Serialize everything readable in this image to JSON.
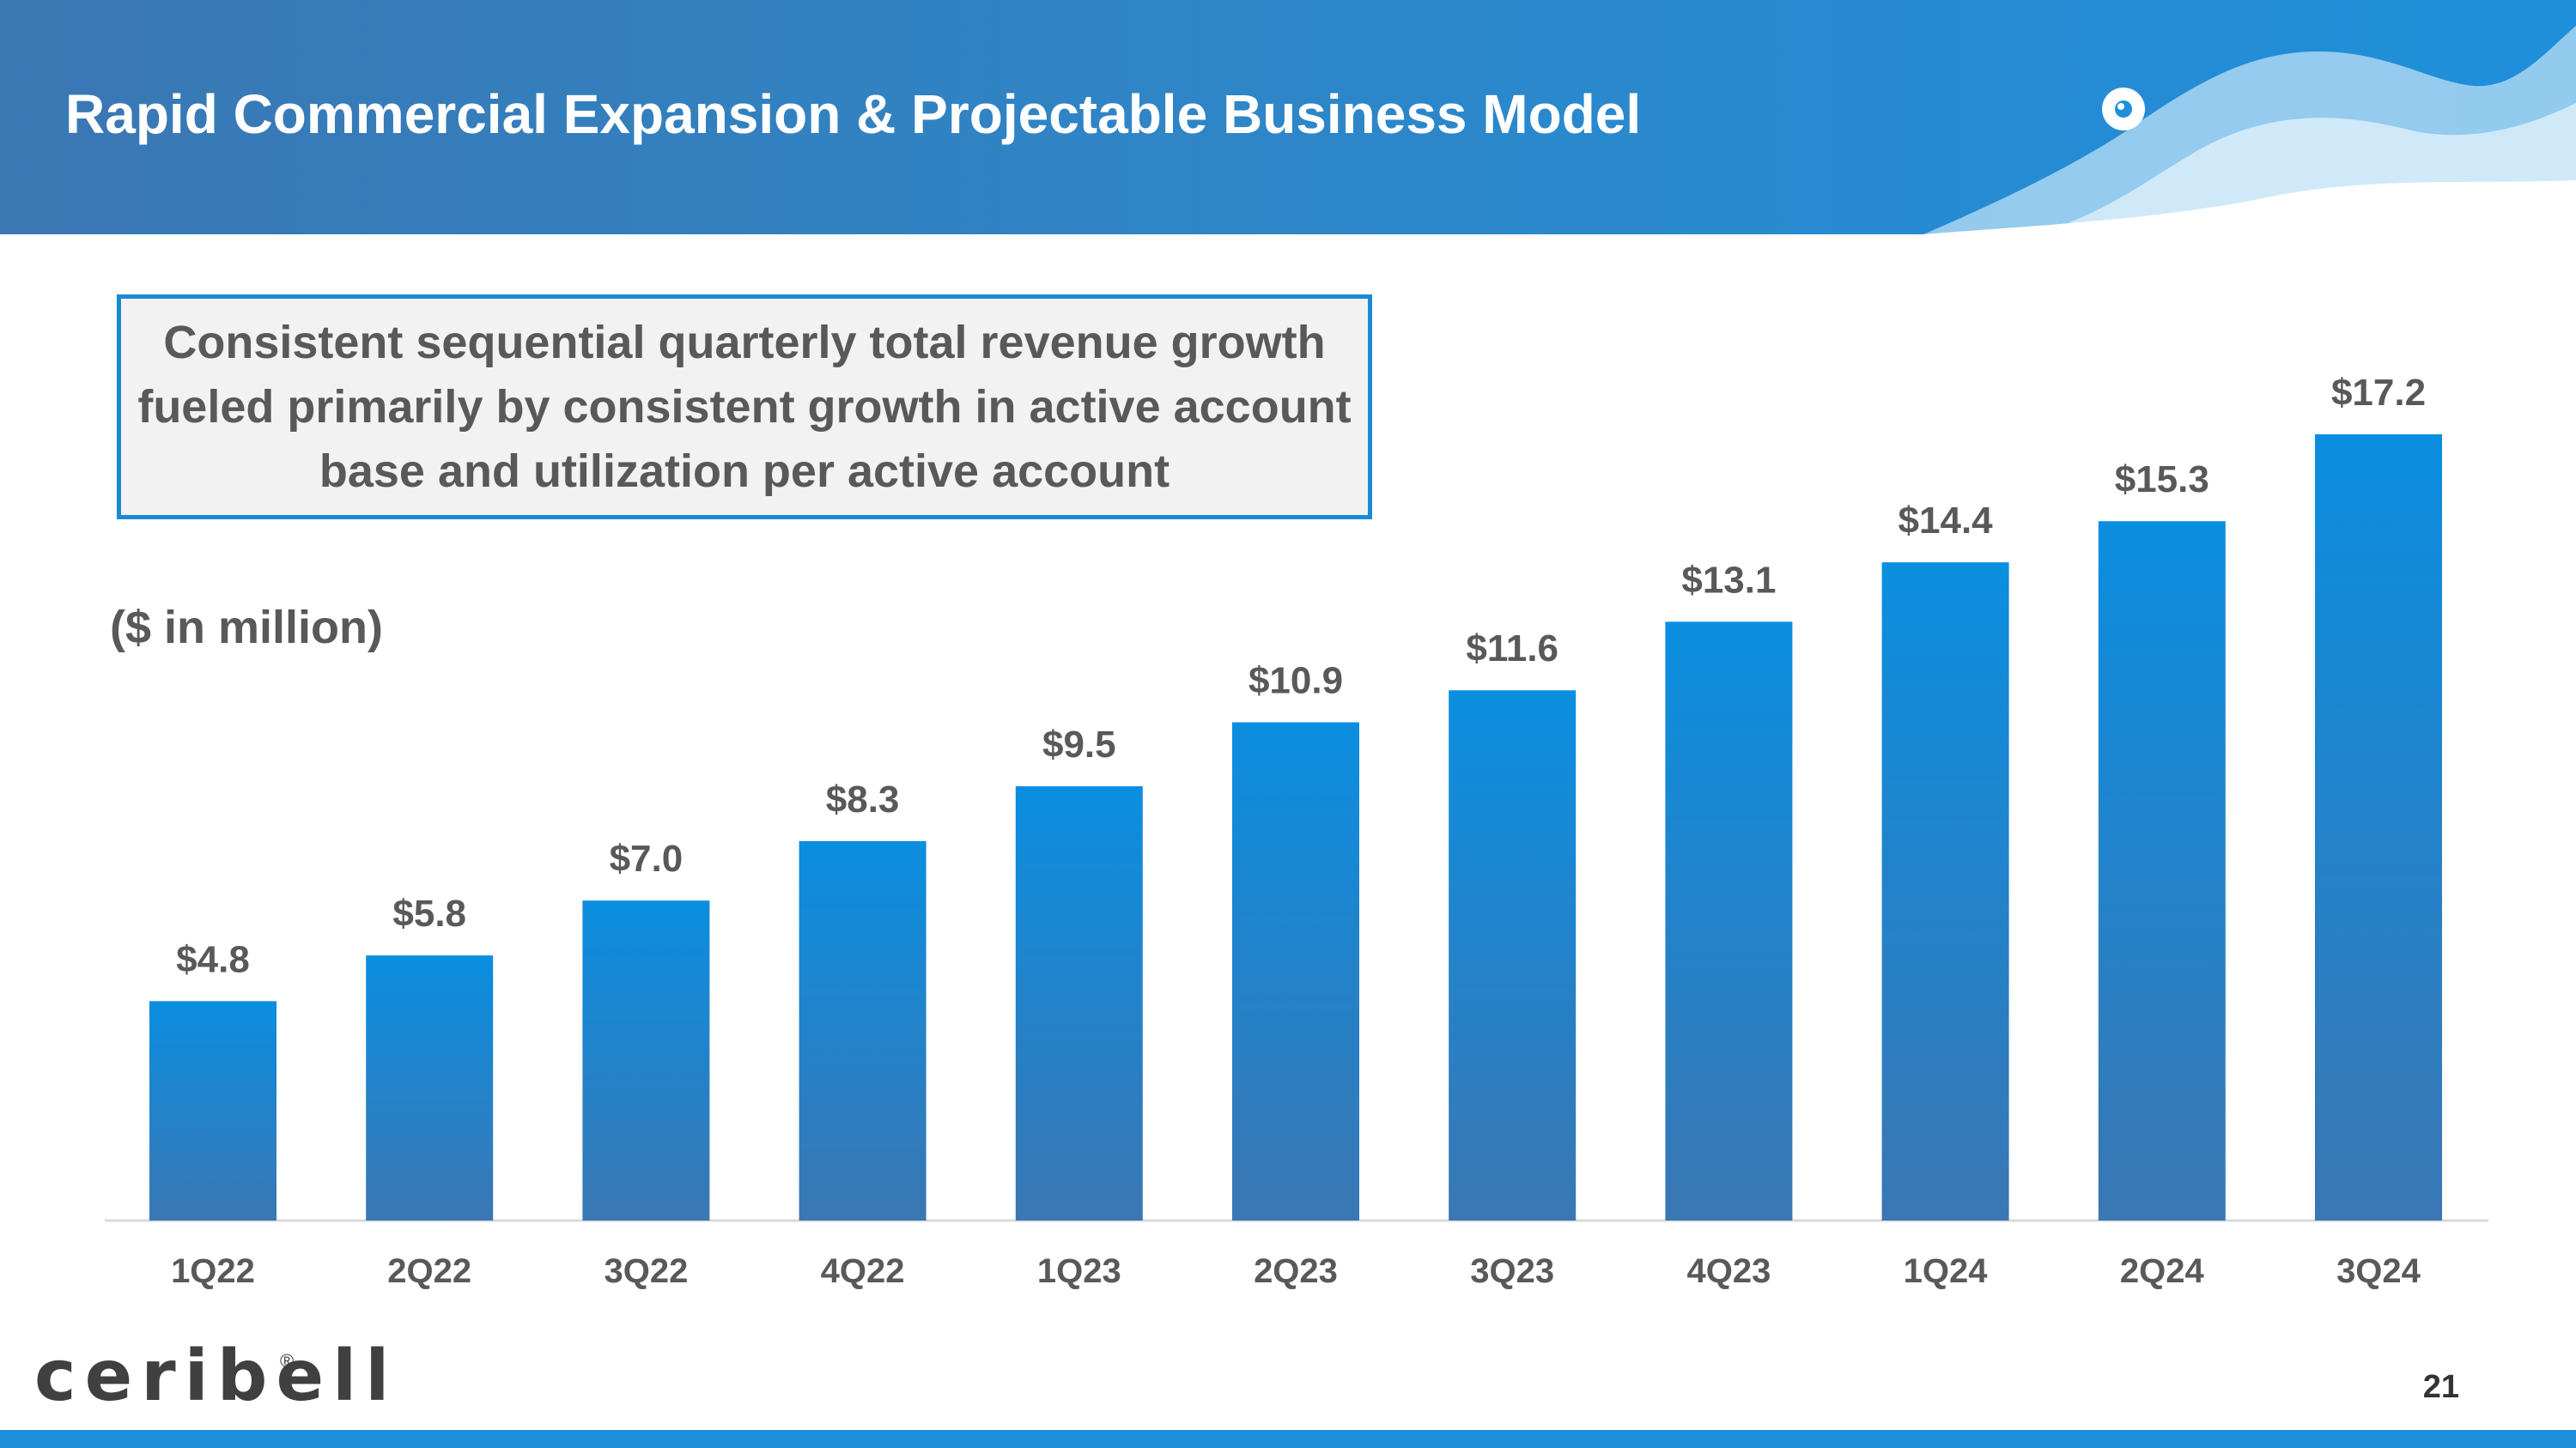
{
  "header": {
    "title": "Rapid Commercial Expansion & Projectable Business Model"
  },
  "callout": {
    "text": "Consistent sequential quarterly total revenue growth fueled primarily by consistent growth in active account base and utilization per active account"
  },
  "unit_label": "($ in million)",
  "logo": {
    "text": "ceribell",
    "registered": "®"
  },
  "page_number": "21",
  "colors": {
    "bar_top": "#0b8ee0",
    "bar_bottom": "#3a77b3",
    "label": "#595959",
    "accent": "#1a8ad4"
  },
  "chart_data": {
    "type": "bar",
    "title": "",
    "xlabel": "",
    "ylabel": "($ in million)",
    "categories": [
      "1Q22",
      "2Q22",
      "3Q22",
      "4Q22",
      "1Q23",
      "2Q23",
      "3Q23",
      "4Q23",
      "1Q24",
      "2Q24",
      "3Q24"
    ],
    "values": [
      4.8,
      5.8,
      7.0,
      8.3,
      9.5,
      10.9,
      11.6,
      13.1,
      14.4,
      15.3,
      17.2
    ],
    "data_labels": [
      "$4.8",
      "$5.8",
      "$7.0",
      "$8.3",
      "$9.5",
      "$10.9",
      "$11.6",
      "$13.1",
      "$14.4",
      "$15.3",
      "$17.2"
    ],
    "ylim": [
      0,
      17.2
    ],
    "grid": false,
    "legend": "none"
  }
}
